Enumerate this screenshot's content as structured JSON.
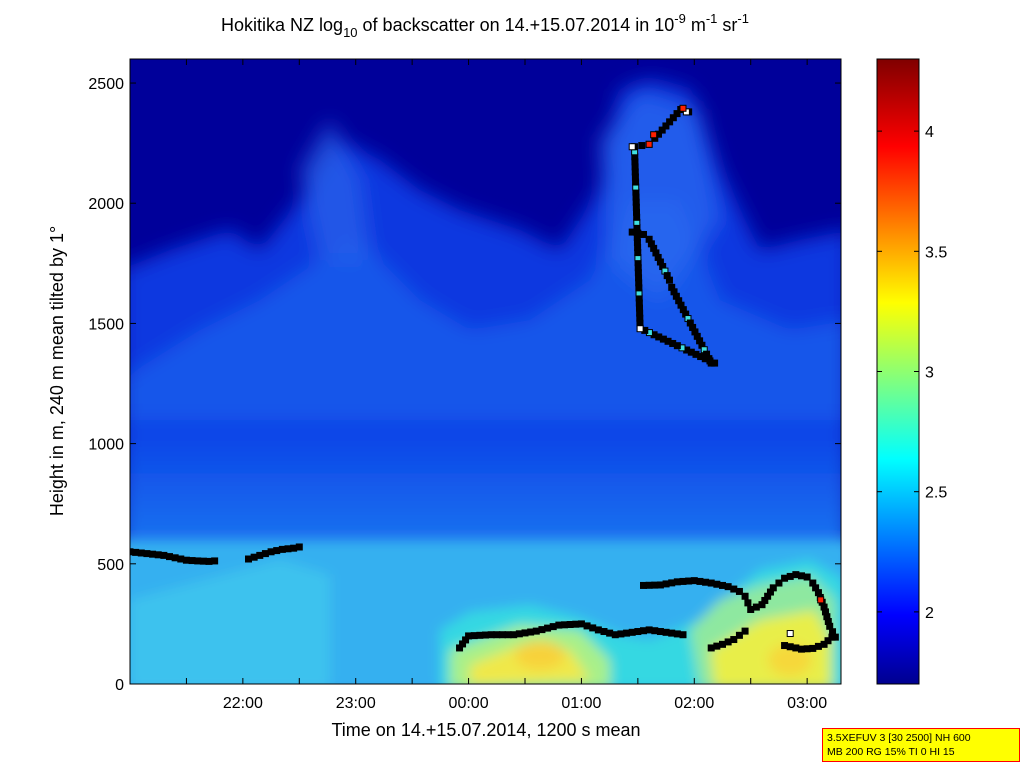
{
  "chart_data": {
    "type": "heatmap",
    "title": {
      "part1": "Hokitika NZ log",
      "sub": "10",
      "part2": " of backscatter on 14.+15.07.2014 in 10",
      "exp1": "-9",
      "part3": " m",
      "exp2": "-1",
      "part4": " sr",
      "exp3": "-1"
    },
    "xlabel": "Time on 14.+15.07.2014, 1200 s mean",
    "ylabel": "Height in m, 240 m mean tilted by 1°",
    "xlim": [
      21.0,
      27.3
    ],
    "ylim": [
      0,
      2600
    ],
    "xticks": [
      {
        "v": 22.0,
        "label": "22:00"
      },
      {
        "v": 23.0,
        "label": "23:00"
      },
      {
        "v": 24.0,
        "label": "00:00"
      },
      {
        "v": 25.0,
        "label": "01:00"
      },
      {
        "v": 26.0,
        "label": "02:00"
      },
      {
        "v": 27.0,
        "label": "03:00"
      }
    ],
    "yticks": [
      0,
      500,
      1000,
      1500,
      2000,
      2500
    ],
    "colorbar": {
      "range": [
        1.7,
        4.3
      ],
      "ticks": [
        2,
        2.5,
        3,
        3.5,
        4
      ],
      "colormap": "jet"
    },
    "heatmap_description_values": {
      "background_upper": 1.85,
      "mid_layer": 2.3,
      "boundary_layer": 2.6,
      "hotspots": [
        {
          "time": 24.6,
          "height": 130,
          "value": 3.3
        },
        {
          "time": 26.7,
          "height": 220,
          "value": 3.2
        }
      ]
    },
    "series": [
      {
        "points": [
          [
            21.0,
            550
          ],
          [
            21.1,
            545
          ],
          [
            21.2,
            540
          ],
          [
            21.3,
            535
          ],
          [
            21.4,
            525
          ],
          [
            21.5,
            515
          ],
          [
            21.6,
            512
          ],
          [
            21.7,
            510
          ],
          [
            21.75,
            512
          ]
        ]
      },
      {
        "points": [
          [
            22.05,
            520
          ],
          [
            22.15,
            535
          ],
          [
            22.25,
            550
          ],
          [
            22.35,
            560
          ],
          [
            22.45,
            565
          ],
          [
            22.5,
            570
          ]
        ]
      },
      {
        "points": [
          [
            23.92,
            150
          ],
          [
            24.0,
            200
          ],
          [
            24.2,
            205
          ],
          [
            24.4,
            205
          ],
          [
            24.6,
            220
          ],
          [
            24.8,
            245
          ],
          [
            25.0,
            250
          ],
          [
            25.15,
            225
          ],
          [
            25.3,
            205
          ],
          [
            25.45,
            215
          ],
          [
            25.6,
            225
          ],
          [
            25.75,
            215
          ],
          [
            25.9,
            205
          ]
        ]
      },
      {
        "points": [
          [
            25.55,
            410
          ],
          [
            25.7,
            412
          ],
          [
            25.85,
            425
          ],
          [
            26.0,
            430
          ],
          [
            26.15,
            420
          ],
          [
            26.3,
            405
          ],
          [
            26.4,
            385
          ],
          [
            26.45,
            365
          ],
          [
            26.5,
            310
          ],
          [
            26.6,
            330
          ],
          [
            26.7,
            400
          ],
          [
            26.8,
            440
          ],
          [
            26.9,
            455
          ],
          [
            27.0,
            445
          ],
          [
            27.05,
            420
          ],
          [
            27.1,
            380
          ],
          [
            27.15,
            320
          ],
          [
            27.2,
            240
          ],
          [
            27.25,
            195
          ]
        ]
      },
      {
        "points": [
          [
            26.15,
            150
          ],
          [
            26.25,
            165
          ],
          [
            26.35,
            185
          ],
          [
            26.45,
            220
          ]
        ]
      },
      {
        "points": [
          [
            26.8,
            160
          ],
          [
            26.95,
            145
          ],
          [
            27.05,
            148
          ],
          [
            27.15,
            165
          ],
          [
            27.22,
            195
          ]
        ]
      },
      {
        "points": [
          [
            25.45,
            1880
          ],
          [
            25.55,
            1870
          ],
          [
            25.6,
            1850
          ],
          [
            25.78,
            1680
          ],
          [
            25.8,
            1650
          ],
          [
            26.15,
            1335
          ],
          [
            26.18,
            1335
          ],
          [
            25.52,
            1480
          ],
          [
            25.47,
            2235
          ],
          [
            25.6,
            2245
          ],
          [
            25.65,
            2270
          ],
          [
            25.88,
            2390
          ],
          [
            25.95,
            2380
          ]
        ]
      }
    ],
    "red_markers": [
      [
        25.6,
        2245
      ],
      [
        25.64,
        2285
      ],
      [
        25.9,
        2395
      ],
      [
        27.12,
        350
      ]
    ],
    "white_markers": [
      [
        25.45,
        2235
      ],
      [
        25.52,
        1478
      ],
      [
        26.85,
        210
      ],
      [
        25.93,
        2380
      ]
    ]
  },
  "info_box": {
    "line1": "3.5XEFUV 3 [30 2500] NH 600",
    "line2": "MB 200 RG 15% TI 0 HI 15"
  }
}
